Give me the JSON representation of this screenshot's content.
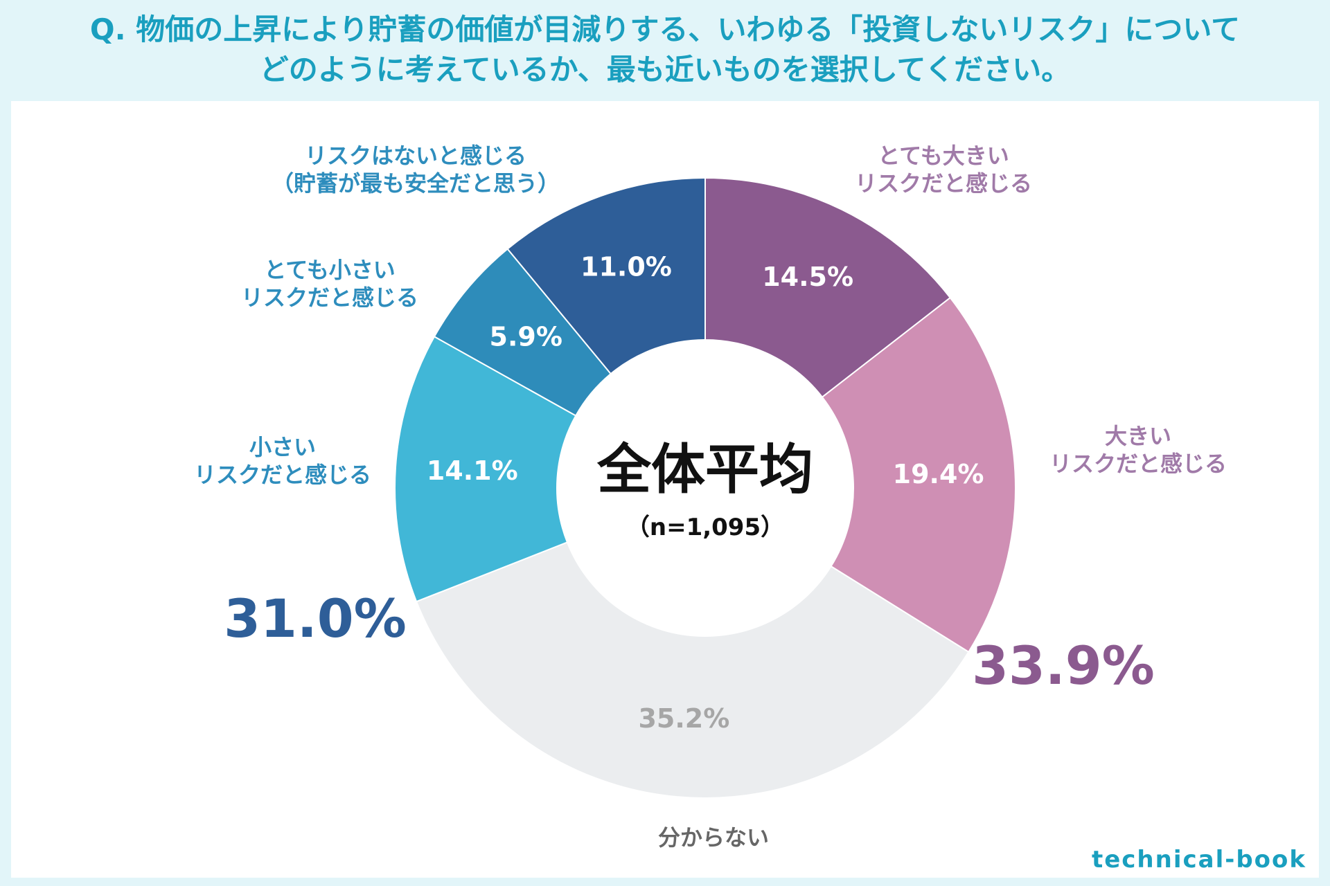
{
  "question": {
    "line1": "Q. 物価の上昇により貯蓄の価値が目減りする、いわゆる「投資しないリスク」について",
    "line2": "どのように考えているか、最も近いものを選択してください。"
  },
  "center": {
    "title": "全体平均",
    "n": "（n=1,095）"
  },
  "brand": "technical-book",
  "colors": {
    "question": "#1a9fbf",
    "bg": "#e2f5f9",
    "large_group": "#8b5a8f",
    "small_group": "#2e5e98"
  },
  "chart_data": {
    "type": "pie",
    "title": "全体平均",
    "slices": [
      {
        "label_lines": [
          "とても大きい",
          "リスクだと感じる"
        ],
        "value": 14.5,
        "display": "14.5%",
        "color": "#8b5a8f",
        "label_color": "#a07aa8",
        "value_color": "#ffffff"
      },
      {
        "label_lines": [
          "大きい",
          "リスクだと感じる"
        ],
        "value": 19.4,
        "display": "19.4%",
        "color": "#cf8fb4",
        "label_color": "#a07aa8",
        "value_color": "#ffffff"
      },
      {
        "label_lines": [
          "分からない"
        ],
        "value": 35.2,
        "display": "35.2%",
        "color": "#ebedef",
        "label_color": "#666666",
        "value_color": "#a6a6a6"
      },
      {
        "label_lines": [
          "小さい",
          "リスクだと感じる"
        ],
        "value": 14.1,
        "display": "14.1%",
        "color": "#41b7d7",
        "label_color": "#2e8dbd",
        "value_color": "#ffffff"
      },
      {
        "label_lines": [
          "とても小さい",
          "リスクだと感じる"
        ],
        "value": 5.9,
        "display": "5.9%",
        "color": "#2e8cba",
        "label_color": "#2e8dbd",
        "value_color": "#ffffff"
      },
      {
        "label_lines": [
          "リスクはないと感じる",
          "（貯蓄が最も安全だと思う）"
        ],
        "value": 11.0,
        "display": "11.0%",
        "color": "#2e5e98",
        "label_color": "#2e8dbd",
        "value_color": "#ffffff"
      }
    ],
    "group_totals": [
      {
        "label": "33.9%",
        "color": "#8b5a8f"
      },
      {
        "label": "31.0%",
        "color": "#2e5e98"
      }
    ]
  }
}
